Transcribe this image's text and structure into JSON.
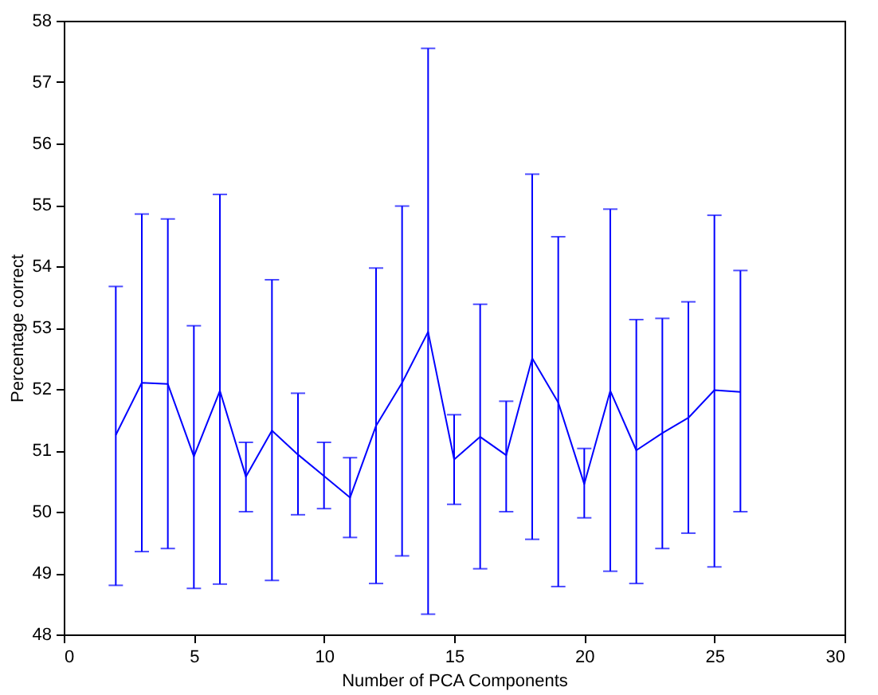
{
  "chart_data": {
    "type": "line",
    "xlabel": "Number of PCA Components",
    "ylabel": "Percentage correct",
    "x": [
      2,
      3,
      4,
      5,
      6,
      7,
      8,
      9,
      10,
      11,
      12,
      13,
      14,
      15,
      16,
      17,
      18,
      19,
      20,
      21,
      22,
      23,
      24,
      25,
      26
    ],
    "series": [
      {
        "color": "#0000ff",
        "values": [
          51.25,
          52.1,
          52.08,
          50.9,
          51.97,
          50.57,
          51.32,
          50.93,
          50.58,
          50.23,
          51.4,
          52.1,
          52.93,
          50.85,
          51.22,
          50.92,
          52.5,
          51.78,
          50.45,
          51.97,
          51.0,
          51.28,
          51.53,
          51.98,
          51.95
        ],
        "errors": [
          [
            48.8,
            53.67
          ],
          [
            49.35,
            54.85
          ],
          [
            49.4,
            54.77
          ],
          [
            48.75,
            53.03
          ],
          [
            48.82,
            55.17
          ],
          [
            50.0,
            51.13
          ],
          [
            48.88,
            53.78
          ],
          [
            49.95,
            51.93
          ],
          [
            50.05,
            51.13
          ],
          [
            49.58,
            50.88
          ],
          [
            48.83,
            53.97
          ],
          [
            49.28,
            54.98
          ],
          [
            48.33,
            57.55
          ],
          [
            50.12,
            51.58
          ],
          [
            49.07,
            53.38
          ],
          [
            50.0,
            51.8
          ],
          [
            49.55,
            55.5
          ],
          [
            48.78,
            54.48
          ],
          [
            49.9,
            51.03
          ],
          [
            49.03,
            54.93
          ],
          [
            48.83,
            53.13
          ],
          [
            49.4,
            53.15
          ],
          [
            49.65,
            53.42
          ],
          [
            49.1,
            54.83
          ],
          [
            50.0,
            53.93
          ]
        ]
      }
    ],
    "xlim": [
      0,
      30
    ],
    "xticks": [
      0,
      5,
      10,
      15,
      20,
      25,
      30
    ],
    "ylim": [
      48,
      58
    ],
    "yticks": [
      48,
      49,
      50,
      51,
      52,
      53,
      54,
      55,
      56,
      57,
      58
    ],
    "grid": false,
    "marker": "none",
    "line_style": "solid"
  }
}
